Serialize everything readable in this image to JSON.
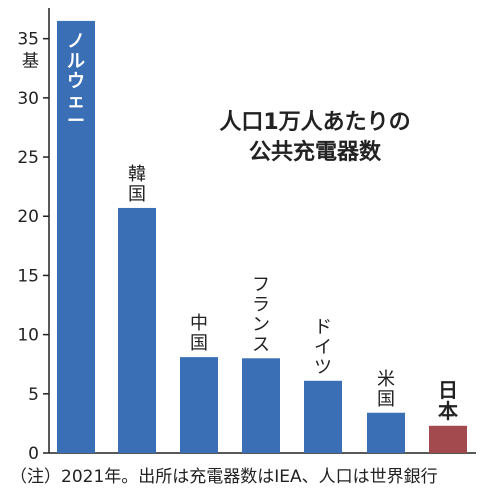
{
  "chart_data": {
    "type": "bar",
    "title_lines": [
      "人口1万人あたりの",
      "公共充電器数"
    ],
    "unit": "基",
    "categories": [
      "ノルウェー",
      "韓国",
      "中国",
      "フランス",
      "ドイツ",
      "米国",
      "日本"
    ],
    "values": [
      36.5,
      20.7,
      8.1,
      8.0,
      6.1,
      3.4,
      2.3
    ],
    "ylim": [
      0,
      37
    ],
    "yticks": [
      0,
      5,
      10,
      15,
      20,
      25,
      30,
      35
    ],
    "grid": false,
    "colors": {
      "bar": "#3a6fb5",
      "highlight": "#a34a4f"
    },
    "highlight_category": "日本",
    "note": "（注）2021年。出所は充電器数はIEA、人口は世界銀行"
  }
}
